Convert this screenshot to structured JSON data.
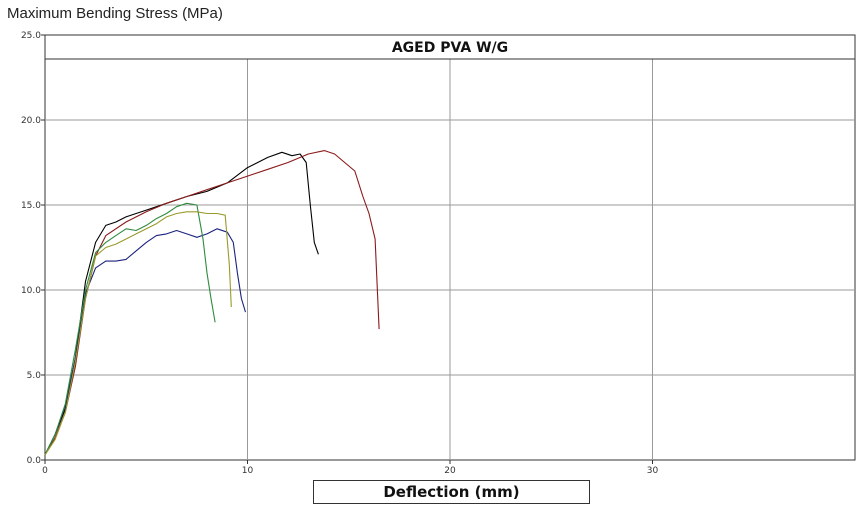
{
  "chart_data": {
    "type": "line",
    "title": "AGED PVA W/G",
    "ylabel": "Maximum Bending Stress (MPa)",
    "xlabel": "Deflection (mm)",
    "xlim": [
      0,
      40
    ],
    "ylim": [
      0,
      25
    ],
    "x_ticks": [
      0,
      10,
      20,
      30
    ],
    "x_tick_labels": [
      "0",
      "10",
      "20",
      "30"
    ],
    "y_ticks": [
      0,
      5,
      10,
      15,
      20,
      25
    ],
    "y_tick_labels": [
      "0.0",
      "5.0",
      "10.0",
      "15.0",
      "20.0",
      "25.0"
    ],
    "grid": true,
    "series": [
      {
        "color": "#000000",
        "x": [
          0,
          0.5,
          1.0,
          1.5,
          2.0,
          2.5,
          3.0,
          3.5,
          4.0,
          4.5,
          5.0,
          6.0,
          7.0,
          8.0,
          9.0,
          10.0,
          11.0,
          11.7,
          12.2,
          12.6,
          12.9,
          13.1,
          13.3,
          13.5
        ],
        "y": [
          0.3,
          1.5,
          3.0,
          6.0,
          10.5,
          12.8,
          13.8,
          14.0,
          14.3,
          14.5,
          14.7,
          15.1,
          15.5,
          15.8,
          16.3,
          17.2,
          17.8,
          18.1,
          17.9,
          18.0,
          17.5,
          15.0,
          12.8,
          12.1
        ]
      },
      {
        "color": "#8b1a1a",
        "x": [
          0,
          0.5,
          1.0,
          1.5,
          2.0,
          2.5,
          3.0,
          4.0,
          5.0,
          6.0,
          7.0,
          8.0,
          9.0,
          10.0,
          11.0,
          12.0,
          13.0,
          13.8,
          14.3,
          14.8,
          15.3,
          15.7,
          16.0,
          16.3,
          16.5
        ],
        "y": [
          0.3,
          1.3,
          2.8,
          5.5,
          9.5,
          12.0,
          13.2,
          14.0,
          14.6,
          15.1,
          15.5,
          15.9,
          16.3,
          16.7,
          17.1,
          17.5,
          18.0,
          18.2,
          18.0,
          17.5,
          17.0,
          15.5,
          14.5,
          13.0,
          7.7
        ]
      },
      {
        "color": "#1a237e",
        "x": [
          0,
          0.5,
          1.0,
          1.5,
          2.0,
          2.5,
          3.0,
          3.5,
          4.0,
          4.5,
          5.0,
          5.5,
          6.0,
          6.5,
          7.0,
          7.5,
          8.0,
          8.5,
          9.0,
          9.3,
          9.5,
          9.7,
          9.9
        ],
        "y": [
          0.3,
          1.5,
          3.2,
          6.0,
          9.8,
          11.3,
          11.7,
          11.7,
          11.8,
          12.3,
          12.8,
          13.2,
          13.3,
          13.5,
          13.3,
          13.1,
          13.3,
          13.6,
          13.4,
          12.8,
          11.0,
          9.5,
          8.7
        ]
      },
      {
        "color": "#2e8b3d",
        "x": [
          0,
          0.5,
          1.0,
          1.5,
          2.0,
          2.5,
          3.0,
          3.5,
          4.0,
          4.5,
          5.0,
          5.5,
          6.0,
          6.5,
          7.0,
          7.5,
          7.8,
          8.0,
          8.2,
          8.4
        ],
        "y": [
          0.3,
          1.5,
          3.3,
          6.5,
          10.0,
          12.2,
          12.8,
          13.2,
          13.6,
          13.5,
          13.8,
          14.2,
          14.5,
          14.9,
          15.1,
          15.0,
          13.0,
          11.0,
          9.5,
          8.1
        ]
      },
      {
        "color": "#9a9a2a",
        "x": [
          0,
          0.5,
          1.0,
          1.5,
          2.0,
          2.5,
          3.0,
          3.5,
          4.0,
          4.5,
          5.0,
          5.5,
          6.0,
          6.5,
          7.0,
          7.5,
          8.0,
          8.5,
          8.9,
          9.1,
          9.2
        ],
        "y": [
          0.3,
          1.2,
          2.8,
          5.8,
          9.5,
          12.0,
          12.5,
          12.7,
          13.0,
          13.3,
          13.6,
          13.9,
          14.3,
          14.5,
          14.6,
          14.6,
          14.5,
          14.5,
          14.4,
          11.5,
          9.0
        ]
      }
    ]
  }
}
